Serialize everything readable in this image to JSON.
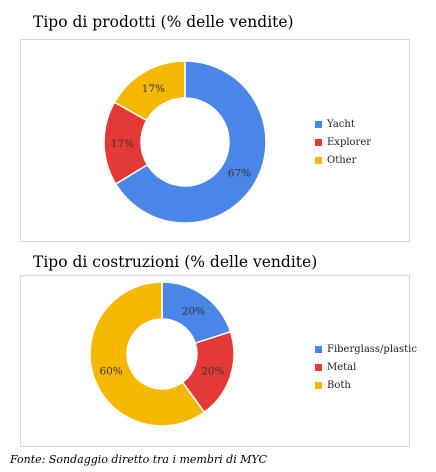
{
  "chart_data": [
    {
      "type": "pie",
      "title": "Tipo di prodotti (% delle vendite)",
      "categories": [
        "Yacht",
        "Explorer",
        "Other"
      ],
      "values": [
        67,
        17,
        17
      ],
      "labels": [
        "67%",
        "17%",
        "17%"
      ],
      "colors": [
        "#4a86e8",
        "#e53935",
        "#f5b800"
      ],
      "legend_position": "right"
    },
    {
      "type": "pie",
      "title": "Tipo di costruzioni (% delle vendite)",
      "categories": [
        "Fiberglass/plastic",
        "Metal",
        "Both"
      ],
      "values": [
        20,
        20,
        60
      ],
      "labels": [
        "20%",
        "20%",
        "60%"
      ],
      "colors": [
        "#4a86e8",
        "#e53935",
        "#f5b800"
      ],
      "legend_position": "right"
    }
  ],
  "footer": "Fonte: Sondaggio diretto tra i membri di MYC"
}
